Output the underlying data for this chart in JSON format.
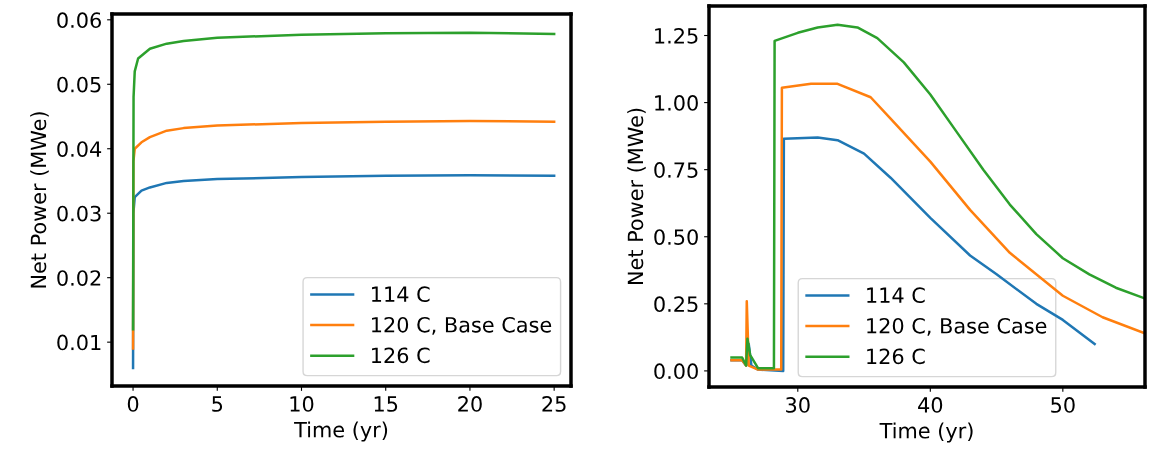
{
  "chart_data": [
    {
      "type": "line",
      "xlabel": "Time (yr)",
      "ylabel": "Net Power (MWe)",
      "xlim": [
        -1.25,
        26.0
      ],
      "ylim": [
        0.0032,
        0.0609
      ],
      "xticks": [
        0,
        5,
        10,
        15,
        20,
        25
      ],
      "yticks": [
        0.01,
        0.02,
        0.03,
        0.04,
        0.05,
        0.06
      ],
      "legend": "bottom right",
      "grid": false,
      "series": [
        {
          "name": "114 C",
          "color": "#1f77b4",
          "x": [
            0,
            0.02,
            0.1,
            0.5,
            1,
            2,
            3,
            5,
            10,
            15,
            20,
            25
          ],
          "values": [
            0.006,
            0.03,
            0.0325,
            0.0335,
            0.034,
            0.0347,
            0.035,
            0.0353,
            0.0356,
            0.0358,
            0.0359,
            0.0358
          ]
        },
        {
          "name": "120 C, Base Case",
          "color": "#ff7f0e",
          "x": [
            0,
            0.02,
            0.1,
            0.5,
            1,
            2,
            3,
            5,
            10,
            15,
            20,
            25
          ],
          "values": [
            0.009,
            0.038,
            0.04,
            0.041,
            0.0418,
            0.0428,
            0.0432,
            0.0436,
            0.044,
            0.0442,
            0.0443,
            0.0442
          ]
        },
        {
          "name": "126 C",
          "color": "#2ca02c",
          "x": [
            0,
            0.03,
            0.1,
            0.3,
            1,
            2,
            3,
            5,
            10,
            15,
            20,
            25
          ],
          "values": [
            0.012,
            0.048,
            0.052,
            0.054,
            0.0555,
            0.0563,
            0.0567,
            0.0572,
            0.0577,
            0.0579,
            0.058,
            0.0578
          ]
        }
      ]
    },
    {
      "type": "line",
      "xlabel": "Time (yr)",
      "ylabel": "Net Power (MWe)",
      "xlim": [
        23.3,
        56.2
      ],
      "ylim": [
        -0.06,
        1.36
      ],
      "xticks": [
        30,
        40,
        50
      ],
      "yticks": [
        {
          "value": 0,
          "label": "0.00"
        },
        0.25,
        {
          "value": 0.5,
          "label": "0.50"
        },
        0.75,
        {
          "value": 1,
          "label": "1.00"
        },
        1.25
      ],
      "legend": "bottom",
      "grid": false,
      "series": [
        {
          "name": "114 C",
          "color": "#1f77b4",
          "x": [
            25,
            25.8,
            26.1,
            26.3,
            26.5,
            27,
            28.9,
            28.95,
            31.5,
            33,
            35,
            37,
            40,
            43,
            45,
            48,
            50,
            52.4
          ],
          "values": [
            0.04,
            0.04,
            0.02,
            0.1,
            0.02,
            0.005,
            0.0,
            0.865,
            0.87,
            0.86,
            0.81,
            0.72,
            0.57,
            0.43,
            0.36,
            0.25,
            0.19,
            0.1
          ]
        },
        {
          "name": "120 C, Base Case",
          "color": "#ff7f0e",
          "x": [
            25,
            25.8,
            26.1,
            26.15,
            26.3,
            27,
            28.75,
            28.8,
            31,
            33,
            35.5,
            37,
            40,
            43,
            46,
            50,
            53,
            56.2
          ],
          "values": [
            0.04,
            0.04,
            0.02,
            0.26,
            0.02,
            0.005,
            0.005,
            1.055,
            1.07,
            1.07,
            1.02,
            0.94,
            0.78,
            0.6,
            0.44,
            0.28,
            0.2,
            0.14
          ]
        },
        {
          "name": "126 C",
          "color": "#2ca02c",
          "x": [
            25,
            25.8,
            26.1,
            26.2,
            26.4,
            27,
            28.2,
            28.25,
            30,
            31.5,
            33,
            34.5,
            36,
            38,
            40,
            42,
            44,
            46,
            48,
            50,
            52,
            54,
            56.2
          ],
          "values": [
            0.05,
            0.05,
            0.02,
            0.12,
            0.06,
            0.01,
            0.01,
            1.23,
            1.26,
            1.28,
            1.29,
            1.28,
            1.24,
            1.15,
            1.03,
            0.89,
            0.75,
            0.62,
            0.51,
            0.42,
            0.36,
            0.31,
            0.27
          ]
        }
      ]
    }
  ]
}
